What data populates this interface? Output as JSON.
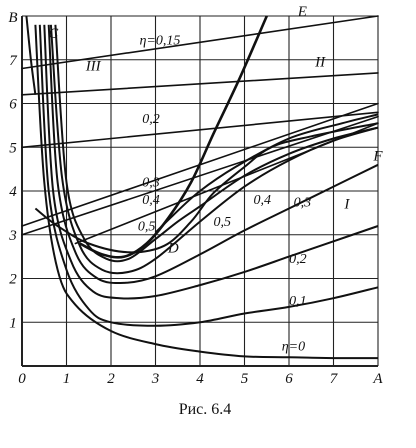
{
  "chart_data": {
    "type": "line",
    "caption": "Рис. 6.4",
    "xlim": [
      0,
      8
    ],
    "ylim": [
      0,
      8
    ],
    "x_ticks": [
      "0",
      "1",
      "2",
      "3",
      "4",
      "5",
      "6",
      "7"
    ],
    "y_ticks": [
      "1",
      "2",
      "3",
      "4",
      "5",
      "6",
      "7"
    ],
    "x_axis_label": "A",
    "y_axis_label": "B",
    "grid": true,
    "point_labels": [
      "C",
      "D",
      "E",
      "F"
    ],
    "region_labels": [
      "I",
      "II",
      "III"
    ],
    "curves": [
      {
        "label": "η=0",
        "points": [
          [
            0.3,
            7.8
          ],
          [
            0.5,
            4.2
          ],
          [
            0.8,
            2.2
          ],
          [
            1.2,
            1.4
          ],
          [
            2,
            0.8
          ],
          [
            3,
            0.5
          ],
          [
            4,
            0.33
          ],
          [
            5,
            0.22
          ],
          [
            6,
            0.2
          ],
          [
            7,
            0.18
          ],
          [
            8,
            0.18
          ]
        ]
      },
      {
        "label": "0,1",
        "points": [
          [
            0.4,
            7.8
          ],
          [
            0.6,
            4.0
          ],
          [
            1.0,
            2.2
          ],
          [
            1.5,
            1.3
          ],
          [
            2,
            1.0
          ],
          [
            3,
            0.92
          ],
          [
            4,
            1.0
          ],
          [
            5,
            1.2
          ],
          [
            6,
            1.35
          ],
          [
            7,
            1.55
          ],
          [
            8,
            1.8
          ]
        ]
      },
      {
        "label": "0,2",
        "points": [
          [
            0.5,
            7.8
          ],
          [
            0.7,
            4.0
          ],
          [
            1.1,
            2.4
          ],
          [
            1.6,
            1.7
          ],
          [
            2.2,
            1.55
          ],
          [
            3,
            1.6
          ],
          [
            4,
            1.85
          ],
          [
            5,
            2.15
          ],
          [
            6,
            2.5
          ],
          [
            7,
            2.85
          ],
          [
            8,
            3.2
          ]
        ]
      },
      {
        "label": "0,3",
        "points": [
          [
            0.6,
            7.8
          ],
          [
            0.8,
            4.2
          ],
          [
            1.2,
            2.6
          ],
          [
            1.7,
            2.0
          ],
          [
            2.3,
            1.9
          ],
          [
            3,
            2.05
          ],
          [
            4,
            2.55
          ],
          [
            5,
            3.1
          ],
          [
            6,
            3.6
          ],
          [
            7,
            4.1
          ],
          [
            8,
            4.6
          ]
        ]
      },
      {
        "label": "0,4",
        "points": [
          [
            0.65,
            7.8
          ],
          [
            0.9,
            4.3
          ],
          [
            1.3,
            2.75
          ],
          [
            1.8,
            2.2
          ],
          [
            2.4,
            2.15
          ],
          [
            3,
            2.45
          ],
          [
            4,
            3.3
          ],
          [
            5,
            4.1
          ],
          [
            6,
            4.7
          ],
          [
            7,
            5.15
          ],
          [
            8,
            5.45
          ]
        ]
      },
      {
        "label": "0,5",
        "points": [
          [
            0.75,
            7.8
          ],
          [
            1.0,
            4.2
          ],
          [
            1.4,
            2.9
          ],
          [
            1.9,
            2.45
          ],
          [
            2.4,
            2.45
          ],
          [
            3,
            2.9
          ],
          [
            3.5,
            3.3
          ],
          [
            4,
            3.65
          ],
          [
            5,
            4.35
          ],
          [
            6,
            4.85
          ],
          [
            7,
            5.2
          ],
          [
            8,
            5.45
          ]
        ]
      },
      {
        "label": "",
        "points": [
          [
            0.3,
            3.6
          ],
          [
            0.8,
            3.2
          ],
          [
            1.5,
            2.8
          ],
          [
            2.4,
            2.6
          ],
          [
            3.2,
            2.75
          ],
          [
            3.8,
            3.3
          ],
          [
            4.3,
            3.95
          ],
          [
            5,
            4.55
          ],
          [
            5.6,
            5.0
          ],
          [
            6.5,
            5.25
          ],
          [
            8,
            5.55
          ]
        ]
      },
      {
        "label": "",
        "points": [
          [
            3.0,
            3.05
          ],
          [
            3.4,
            3.45
          ],
          [
            4,
            4.0
          ],
          [
            4.8,
            4.55
          ],
          [
            6,
            5.2
          ],
          [
            7.2,
            5.55
          ],
          [
            8,
            5.75
          ]
        ]
      }
    ],
    "rays": [
      {
        "label": "η=0,15",
        "points": [
          [
            0,
            6.8
          ],
          [
            8,
            8.0
          ]
        ]
      },
      {
        "label": "",
        "points": [
          [
            0,
            6.2
          ],
          [
            8,
            6.7
          ]
        ]
      },
      {
        "label": "0,2",
        "points": [
          [
            0,
            5.0
          ],
          [
            8,
            5.8
          ]
        ]
      },
      {
        "label": "0,3",
        "points": [
          [
            0,
            3.2
          ],
          [
            8,
            6.0
          ]
        ]
      },
      {
        "label": "0,4",
        "points": [
          [
            0,
            3.0
          ],
          [
            8,
            5.7
          ]
        ]
      },
      {
        "label": "0,5",
        "points": [
          [
            1.2,
            2.8
          ],
          [
            8,
            5.55
          ]
        ]
      }
    ],
    "envelope_E": [
      [
        1.3,
        2.8
      ],
      [
        1.8,
        2.55
      ],
      [
        2.3,
        2.5
      ],
      [
        2.8,
        2.8
      ],
      [
        3.3,
        3.4
      ],
      [
        3.8,
        4.2
      ],
      [
        4.3,
        5.3
      ],
      [
        4.9,
        6.6
      ],
      [
        5.5,
        8.0
      ]
    ],
    "region_III_boundary": [
      [
        0.1,
        8.0
      ],
      [
        0.2,
        7.0
      ],
      [
        0.3,
        6.2
      ]
    ]
  }
}
